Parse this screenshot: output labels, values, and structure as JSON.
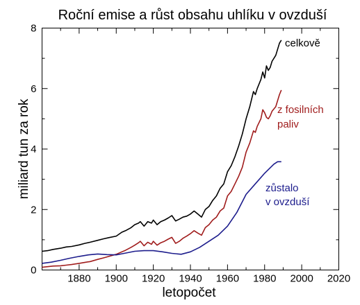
{
  "chart_data": {
    "type": "line",
    "title": "Roční emise a růst obsahu uhlíku v ovzduší",
    "xlabel": "letopočet",
    "ylabel": "miliard tun za rok",
    "xlim": [
      1860,
      2020
    ],
    "ylim": [
      0,
      8
    ],
    "xticks": [
      1880,
      1900,
      1920,
      1940,
      1960,
      1980,
      2000,
      2020
    ],
    "yticks": [
      0,
      2,
      4,
      6,
      8
    ],
    "grid": false,
    "series": [
      {
        "name": "celkově",
        "label_lines": [
          "celkově"
        ],
        "color": "#000000",
        "x": [
          1860,
          1863,
          1866,
          1870,
          1873,
          1876,
          1880,
          1883,
          1886,
          1890,
          1893,
          1896,
          1900,
          1903,
          1905,
          1908,
          1910,
          1912,
          1913,
          1915,
          1917,
          1919,
          1920,
          1922,
          1924,
          1926,
          1928,
          1930,
          1932,
          1934,
          1936,
          1938,
          1940,
          1942,
          1944,
          1946,
          1948,
          1950,
          1952,
          1954,
          1956,
          1958,
          1960,
          1962,
          1964,
          1966,
          1968,
          1970,
          1972,
          1974,
          1975,
          1976,
          1978,
          1979,
          1980,
          1981,
          1982,
          1983,
          1984,
          1986,
          1988,
          1989
        ],
        "y": [
          0.62,
          0.64,
          0.68,
          0.72,
          0.76,
          0.78,
          0.83,
          0.88,
          0.92,
          0.98,
          1.03,
          1.07,
          1.12,
          1.25,
          1.3,
          1.4,
          1.5,
          1.55,
          1.6,
          1.45,
          1.6,
          1.55,
          1.65,
          1.5,
          1.6,
          1.65,
          1.72,
          1.8,
          1.62,
          1.68,
          1.75,
          1.78,
          1.85,
          1.95,
          1.85,
          1.75,
          2.0,
          2.1,
          2.3,
          2.45,
          2.7,
          2.85,
          3.25,
          3.45,
          3.75,
          4.1,
          4.5,
          5.0,
          5.4,
          5.9,
          5.8,
          6.0,
          6.3,
          6.55,
          6.35,
          6.75,
          6.6,
          6.7,
          6.9,
          7.1,
          7.5,
          7.6
        ]
      },
      {
        "name": "z fosilních paliv",
        "label_lines": [
          "z fosilních",
          "paliv"
        ],
        "color": "#a01c1c",
        "x": [
          1860,
          1863,
          1866,
          1870,
          1873,
          1876,
          1880,
          1883,
          1886,
          1890,
          1893,
          1896,
          1900,
          1903,
          1905,
          1908,
          1910,
          1912,
          1913,
          1915,
          1917,
          1919,
          1920,
          1922,
          1924,
          1926,
          1928,
          1930,
          1932,
          1934,
          1936,
          1938,
          1940,
          1942,
          1944,
          1946,
          1948,
          1950,
          1952,
          1954,
          1956,
          1958,
          1960,
          1962,
          1964,
          1966,
          1968,
          1970,
          1972,
          1974,
          1975,
          1976,
          1978,
          1979,
          1980,
          1981,
          1982,
          1983,
          1984,
          1986,
          1988,
          1989
        ],
        "y": [
          0.09,
          0.11,
          0.13,
          0.14,
          0.16,
          0.18,
          0.22,
          0.25,
          0.28,
          0.35,
          0.4,
          0.45,
          0.52,
          0.6,
          0.65,
          0.75,
          0.82,
          0.9,
          0.95,
          0.8,
          0.92,
          0.85,
          0.95,
          0.82,
          0.9,
          0.95,
          1.02,
          1.08,
          0.88,
          0.95,
          1.05,
          1.12,
          1.2,
          1.3,
          1.22,
          1.15,
          1.4,
          1.5,
          1.65,
          1.75,
          1.95,
          2.05,
          2.45,
          2.6,
          2.85,
          3.1,
          3.4,
          3.9,
          4.2,
          4.6,
          4.55,
          4.75,
          5.0,
          5.3,
          5.2,
          5.05,
          5.0,
          5.1,
          5.25,
          5.4,
          5.8,
          5.95
        ]
      },
      {
        "name": "zůstalo v ovzduší",
        "label_lines": [
          "zůstalo",
          "v ovzduší"
        ],
        "color": "#1c1c8c",
        "x": [
          1860,
          1865,
          1870,
          1875,
          1880,
          1885,
          1890,
          1895,
          1900,
          1905,
          1910,
          1915,
          1920,
          1925,
          1930,
          1935,
          1940,
          1945,
          1950,
          1955,
          1960,
          1965,
          1970,
          1975,
          1980,
          1985,
          1987,
          1989
        ],
        "y": [
          0.22,
          0.26,
          0.32,
          0.39,
          0.45,
          0.5,
          0.53,
          0.51,
          0.5,
          0.56,
          0.62,
          0.64,
          0.64,
          0.6,
          0.55,
          0.52,
          0.6,
          0.75,
          0.95,
          1.15,
          1.45,
          1.9,
          2.5,
          2.85,
          3.2,
          3.5,
          3.58,
          3.58
        ]
      }
    ]
  }
}
